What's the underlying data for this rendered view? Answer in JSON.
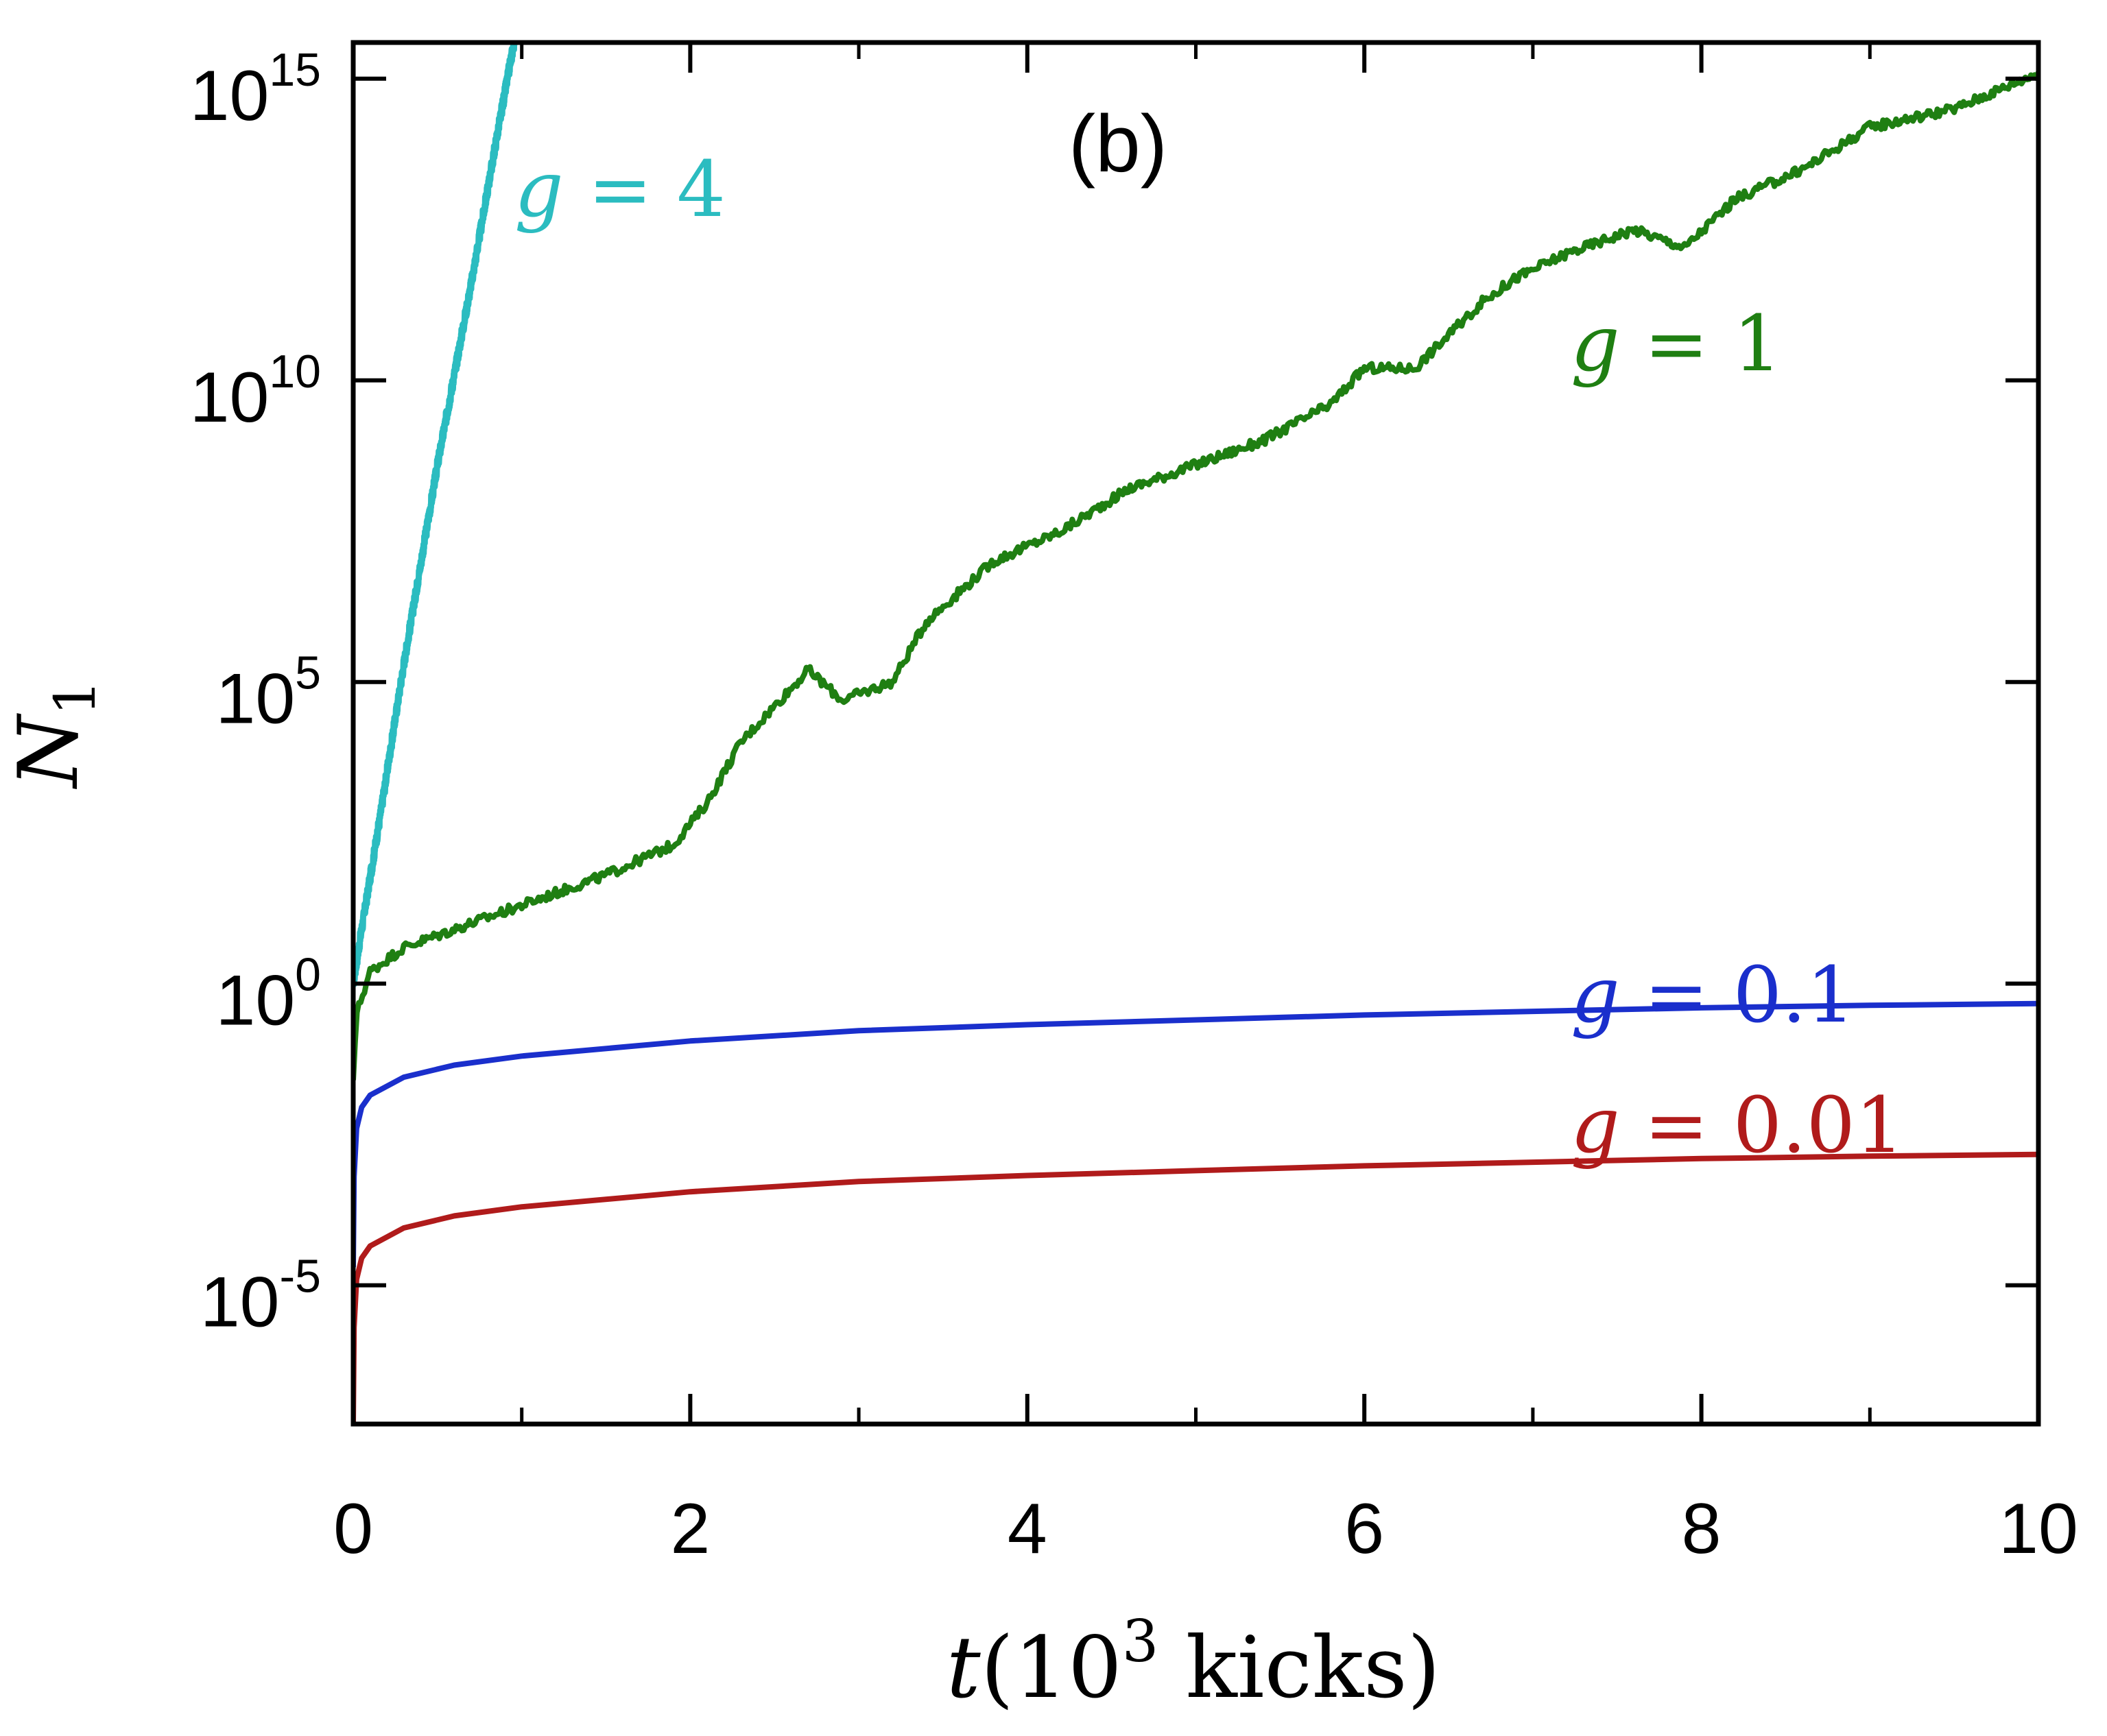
{
  "chart_data": {
    "type": "line",
    "panel_label": "(b)",
    "xlabel": {
      "var": "t",
      "open": "(",
      "base": "10",
      "exp": "3",
      "unit": " kicks",
      "close": ")"
    },
    "ylabel": {
      "var": "N",
      "sub": "1"
    },
    "xlim": [
      0,
      10
    ],
    "ylim_log10": [
      -7.3,
      15.6
    ],
    "y_scale": "log",
    "grid": false,
    "x_ticks": [
      {
        "value": 0,
        "label": "0"
      },
      {
        "value": 2,
        "label": "2"
      },
      {
        "value": 4,
        "label": "4"
      },
      {
        "value": 6,
        "label": "6"
      },
      {
        "value": 8,
        "label": "8"
      },
      {
        "value": 10,
        "label": "10"
      }
    ],
    "x_minor_ticks": [
      1,
      3,
      5,
      7,
      9
    ],
    "y_ticks": [
      {
        "log10": -5,
        "base": "10",
        "exp": "-5"
      },
      {
        "log10": 0,
        "base": "10",
        "exp": "0"
      },
      {
        "log10": 5,
        "base": "10",
        "exp": "5"
      },
      {
        "log10": 10,
        "base": "10",
        "exp": "10"
      },
      {
        "log10": 15,
        "base": "10",
        "exp": "15"
      }
    ],
    "series": [
      {
        "name": "g = 4",
        "label_var": "g",
        "label_value": "4",
        "color": "#2bbcc0",
        "points_log10": [
          [
            0,
            0
          ],
          [
            0.05,
            0.9
          ],
          [
            0.15,
            2.6
          ],
          [
            0.3,
            5.3
          ],
          [
            0.5,
            8.6
          ],
          [
            0.7,
            11.6
          ],
          [
            0.85,
            14.0
          ],
          [
            0.98,
            16.0
          ]
        ],
        "noise": 0.25
      },
      {
        "name": "g = 1",
        "label_var": "g",
        "label_value": "1",
        "color": "#1f7f12",
        "points_log10": [
          [
            0,
            -1.6
          ],
          [
            0.02,
            -0.5
          ],
          [
            0.1,
            0.2
          ],
          [
            0.3,
            0.6
          ],
          [
            0.6,
            0.9
          ],
          [
            1.0,
            1.3
          ],
          [
            1.5,
            1.8
          ],
          [
            1.9,
            2.3
          ],
          [
            2.1,
            3.0
          ],
          [
            2.3,
            4.0
          ],
          [
            2.7,
            5.2
          ],
          [
            2.9,
            4.7
          ],
          [
            3.2,
            5.0
          ],
          [
            3.4,
            6.0
          ],
          [
            3.8,
            7.0
          ],
          [
            4.2,
            7.5
          ],
          [
            4.6,
            8.2
          ],
          [
            5.0,
            8.6
          ],
          [
            5.4,
            9.0
          ],
          [
            5.8,
            9.6
          ],
          [
            6.0,
            10.2
          ],
          [
            6.3,
            10.2
          ],
          [
            6.7,
            11.3
          ],
          [
            6.9,
            11.7
          ],
          [
            7.2,
            12.1
          ],
          [
            7.6,
            12.5
          ],
          [
            7.9,
            12.2
          ],
          [
            8.2,
            13.0
          ],
          [
            8.6,
            13.5
          ],
          [
            9.0,
            14.2
          ],
          [
            9.5,
            14.5
          ],
          [
            10.0,
            15.1
          ]
        ],
        "noise": 0.16
      },
      {
        "name": "g = 0.1",
        "label_var": "g",
        "label_value": "0.1",
        "color": "#1a2fcc",
        "points_log10": [
          [
            0,
            -4.7
          ],
          [
            0.005,
            -3.2
          ],
          [
            0.02,
            -2.4
          ],
          [
            0.05,
            -2.05
          ],
          [
            0.1,
            -1.85
          ],
          [
            0.3,
            -1.55
          ],
          [
            0.6,
            -1.35
          ],
          [
            1.0,
            -1.2
          ],
          [
            2.0,
            -0.95
          ],
          [
            3.0,
            -0.78
          ],
          [
            4.0,
            -0.68
          ],
          [
            5.0,
            -0.6
          ],
          [
            6.0,
            -0.52
          ],
          [
            7.0,
            -0.46
          ],
          [
            8.0,
            -0.4
          ],
          [
            9.0,
            -0.36
          ],
          [
            10.0,
            -0.33
          ]
        ],
        "noise": 0
      },
      {
        "name": "g = 0.01",
        "label_var": "g",
        "label_value": "0.01",
        "color": "#b01b1b",
        "points_log10": [
          [
            0,
            -7.3
          ],
          [
            0.005,
            -5.7
          ],
          [
            0.02,
            -4.9
          ],
          [
            0.05,
            -4.55
          ],
          [
            0.1,
            -4.35
          ],
          [
            0.3,
            -4.05
          ],
          [
            0.6,
            -3.85
          ],
          [
            1.0,
            -3.7
          ],
          [
            2.0,
            -3.45
          ],
          [
            3.0,
            -3.28
          ],
          [
            4.0,
            -3.18
          ],
          [
            5.0,
            -3.1
          ],
          [
            6.0,
            -3.02
          ],
          [
            7.0,
            -2.96
          ],
          [
            8.0,
            -2.9
          ],
          [
            9.0,
            -2.86
          ],
          [
            10.0,
            -2.83
          ]
        ],
        "noise": 0
      }
    ]
  }
}
